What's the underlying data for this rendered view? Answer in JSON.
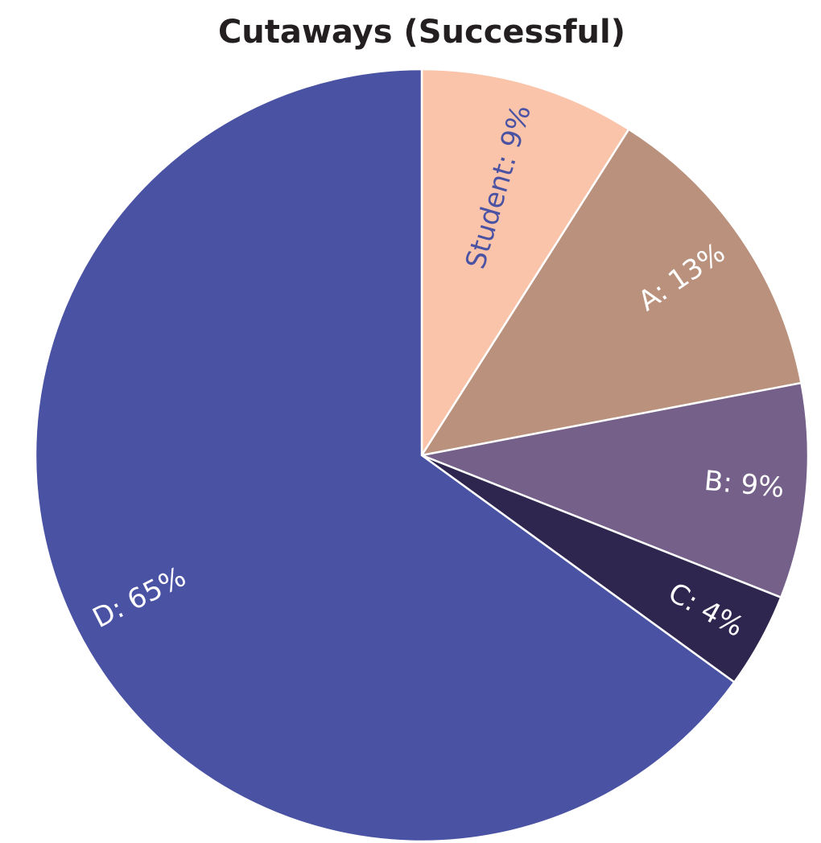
{
  "chart_data": {
    "type": "pie",
    "title": "Cutaways (Successful)",
    "categories": [
      "Student",
      "A",
      "B",
      "C",
      "D"
    ],
    "values": [
      9,
      13,
      9,
      4,
      65
    ],
    "value_labels": [
      "Student: 9%",
      "A: 13%",
      "B: 9%",
      "C: 4%",
      "D: 65%"
    ],
    "colors": [
      "#f9c4aa",
      "#b9917d",
      "#756089",
      "#2e264f",
      "#4a52a3"
    ],
    "label_colors": [
      "#4a52a3",
      "#ffffff",
      "#ffffff",
      "#ffffff",
      "#ffffff"
    ]
  }
}
